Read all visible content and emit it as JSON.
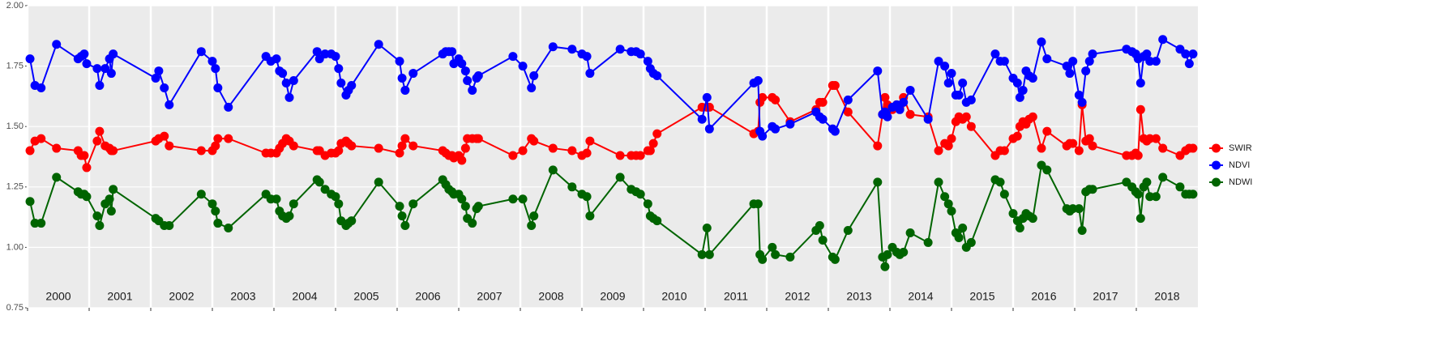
{
  "chart_data": {
    "type": "line",
    "x": [
      2000.04,
      2000.12,
      2000.22,
      2000.47,
      2000.82,
      2000.87,
      2000.92,
      2000.96,
      2001.13,
      2001.17,
      2001.26,
      2001.33,
      2001.36,
      2001.39,
      2002.08,
      2002.13,
      2002.22,
      2002.3,
      2002.82,
      2003.0,
      2003.05,
      2003.09,
      2003.26,
      2003.87,
      2003.95,
      2004.04,
      2004.09,
      2004.14,
      2004.2,
      2004.25,
      2004.32,
      2004.7,
      2004.74,
      2004.83,
      2004.93,
      2005.0,
      2005.05,
      2005.09,
      2005.17,
      2005.21,
      2005.26,
      2005.7,
      2006.04,
      2006.08,
      2006.13,
      2006.26,
      2006.74,
      2006.79,
      2006.84,
      2006.89,
      2006.92,
      2007.0,
      2007.05,
      2007.11,
      2007.14,
      2007.22,
      2007.29,
      2007.32,
      2007.88,
      2008.04,
      2008.18,
      2008.22,
      2008.53,
      2008.84,
      2009.0,
      2009.08,
      2009.13,
      2009.62,
      2009.8,
      2009.88,
      2009.95,
      2010.07,
      2010.11,
      2010.16,
      2010.22,
      2010.95,
      2011.03,
      2011.07,
      2011.79,
      2011.86,
      2011.89,
      2011.93,
      2012.09,
      2012.14,
      2012.38,
      2012.8,
      2012.86,
      2012.91,
      2013.07,
      2013.11,
      2013.32,
      2013.8,
      2013.88,
      2013.92,
      2013.96,
      2014.04,
      2014.11,
      2014.16,
      2014.22,
      2014.33,
      2014.62,
      2014.79,
      2014.89,
      2014.95,
      2015.0,
      2015.07,
      2015.12,
      2015.18,
      2015.24,
      2015.32,
      2015.71,
      2015.79,
      2015.86,
      2016.0,
      2016.07,
      2016.11,
      2016.16,
      2016.21,
      2016.26,
      2016.32,
      2016.46,
      2016.55,
      2016.87,
      2016.92,
      2016.97,
      2017.07,
      2017.12,
      2017.18,
      2017.24,
      2017.29,
      2017.84,
      2017.93,
      2017.99,
      2018.03,
      2018.07,
      2018.12,
      2018.17,
      2018.22,
      2018.32,
      2018.43,
      2018.71,
      2018.8,
      2018.86,
      2018.92
    ],
    "series": [
      {
        "name": "SWIR",
        "color": "#ff0000",
        "values": [
          1.4,
          1.44,
          1.45,
          1.41,
          1.4,
          1.38,
          1.38,
          1.33,
          1.44,
          1.48,
          1.42,
          1.41,
          1.4,
          1.4,
          1.44,
          1.45,
          1.46,
          1.42,
          1.4,
          1.4,
          1.42,
          1.45,
          1.45,
          1.39,
          1.39,
          1.39,
          1.41,
          1.43,
          1.45,
          1.44,
          1.42,
          1.4,
          1.4,
          1.38,
          1.39,
          1.39,
          1.4,
          1.43,
          1.44,
          1.43,
          1.42,
          1.41,
          1.39,
          1.42,
          1.45,
          1.42,
          1.4,
          1.39,
          1.38,
          1.38,
          1.37,
          1.38,
          1.36,
          1.41,
          1.45,
          1.45,
          1.45,
          1.45,
          1.38,
          1.4,
          1.45,
          1.44,
          1.41,
          1.4,
          1.38,
          1.39,
          1.44,
          1.38,
          1.38,
          1.38,
          1.38,
          1.4,
          1.4,
          1.43,
          1.47,
          1.58,
          1.58,
          1.58,
          1.47,
          1.48,
          1.6,
          1.62,
          1.62,
          1.61,
          1.52,
          1.57,
          1.6,
          1.6,
          1.67,
          1.67,
          1.56,
          1.42,
          1.55,
          1.62,
          1.59,
          1.57,
          1.59,
          1.58,
          1.62,
          1.55,
          1.54,
          1.4,
          1.43,
          1.42,
          1.45,
          1.52,
          1.54,
          1.53,
          1.54,
          1.5,
          1.38,
          1.4,
          1.4,
          1.45,
          1.46,
          1.5,
          1.52,
          1.51,
          1.53,
          1.54,
          1.41,
          1.48,
          1.42,
          1.43,
          1.43,
          1.4,
          1.59,
          1.44,
          1.45,
          1.42,
          1.38,
          1.38,
          1.39,
          1.38,
          1.57,
          1.45,
          1.44,
          1.45,
          1.45,
          1.41,
          1.38,
          1.4,
          1.41,
          1.41
        ]
      },
      {
        "name": "NDVI",
        "color": "#0000ff",
        "values": [
          1.78,
          1.67,
          1.66,
          1.84,
          1.78,
          1.79,
          1.8,
          1.76,
          1.74,
          1.67,
          1.74,
          1.78,
          1.72,
          1.8,
          1.7,
          1.73,
          1.66,
          1.59,
          1.81,
          1.77,
          1.74,
          1.66,
          1.58,
          1.79,
          1.77,
          1.78,
          1.73,
          1.72,
          1.68,
          1.62,
          1.69,
          1.81,
          1.78,
          1.8,
          1.8,
          1.79,
          1.74,
          1.68,
          1.63,
          1.65,
          1.67,
          1.84,
          1.77,
          1.7,
          1.65,
          1.72,
          1.8,
          1.81,
          1.81,
          1.81,
          1.76,
          1.78,
          1.76,
          1.73,
          1.69,
          1.65,
          1.7,
          1.71,
          1.79,
          1.75,
          1.66,
          1.71,
          1.83,
          1.82,
          1.8,
          1.79,
          1.72,
          1.82,
          1.81,
          1.81,
          1.8,
          1.77,
          1.74,
          1.72,
          1.71,
          1.53,
          1.62,
          1.49,
          1.68,
          1.69,
          1.48,
          1.46,
          1.5,
          1.49,
          1.51,
          1.56,
          1.54,
          1.53,
          1.49,
          1.48,
          1.61,
          1.73,
          1.55,
          1.56,
          1.54,
          1.58,
          1.59,
          1.57,
          1.6,
          1.65,
          1.53,
          1.77,
          1.75,
          1.68,
          1.72,
          1.63,
          1.63,
          1.68,
          1.6,
          1.61,
          1.8,
          1.77,
          1.77,
          1.7,
          1.68,
          1.62,
          1.65,
          1.73,
          1.71,
          1.7,
          1.85,
          1.78,
          1.75,
          1.72,
          1.77,
          1.63,
          1.6,
          1.73,
          1.77,
          1.8,
          1.82,
          1.81,
          1.8,
          1.78,
          1.68,
          1.79,
          1.8,
          1.77,
          1.77,
          1.86,
          1.82,
          1.8,
          1.76,
          1.8
        ]
      },
      {
        "name": "NDWI",
        "color": "#006400",
        "values": [
          1.19,
          1.1,
          1.1,
          1.29,
          1.23,
          1.22,
          1.22,
          1.21,
          1.13,
          1.09,
          1.18,
          1.2,
          1.15,
          1.24,
          1.12,
          1.11,
          1.09,
          1.09,
          1.22,
          1.18,
          1.15,
          1.1,
          1.08,
          1.22,
          1.2,
          1.2,
          1.15,
          1.13,
          1.12,
          1.13,
          1.18,
          1.28,
          1.27,
          1.24,
          1.22,
          1.21,
          1.18,
          1.11,
          1.09,
          1.1,
          1.11,
          1.27,
          1.17,
          1.13,
          1.09,
          1.18,
          1.28,
          1.26,
          1.24,
          1.23,
          1.22,
          1.22,
          1.2,
          1.17,
          1.12,
          1.1,
          1.16,
          1.17,
          1.2,
          1.2,
          1.09,
          1.13,
          1.32,
          1.25,
          1.22,
          1.21,
          1.13,
          1.29,
          1.24,
          1.23,
          1.22,
          1.18,
          1.13,
          1.12,
          1.11,
          0.97,
          1.08,
          0.97,
          1.18,
          1.18,
          0.97,
          0.95,
          1.0,
          0.97,
          0.96,
          1.07,
          1.09,
          1.03,
          0.96,
          0.95,
          1.07,
          1.27,
          0.96,
          0.92,
          0.97,
          1.0,
          0.98,
          0.97,
          0.98,
          1.06,
          1.02,
          1.27,
          1.21,
          1.18,
          1.15,
          1.06,
          1.04,
          1.08,
          1.0,
          1.02,
          1.28,
          1.27,
          1.22,
          1.14,
          1.11,
          1.08,
          1.12,
          1.14,
          1.13,
          1.12,
          1.34,
          1.32,
          1.16,
          1.15,
          1.16,
          1.16,
          1.07,
          1.23,
          1.24,
          1.24,
          1.27,
          1.25,
          1.23,
          1.22,
          1.12,
          1.25,
          1.27,
          1.21,
          1.21,
          1.29,
          1.25,
          1.22,
          1.22,
          1.22
        ]
      }
    ],
    "xlim": [
      2000,
      2019
    ],
    "xticks": [
      {
        "value": 2000,
        "label": "2000"
      },
      {
        "value": 2001,
        "label": "2001"
      },
      {
        "value": 2002,
        "label": "2002"
      },
      {
        "value": 2003,
        "label": "2003"
      },
      {
        "value": 2004,
        "label": "2004"
      },
      {
        "value": 2005,
        "label": "2005"
      },
      {
        "value": 2006,
        "label": "2006"
      },
      {
        "value": 2007,
        "label": "2007"
      },
      {
        "value": 2008,
        "label": "2008"
      },
      {
        "value": 2009,
        "label": "2009"
      },
      {
        "value": 2010,
        "label": "2010"
      },
      {
        "value": 2011,
        "label": "2011"
      },
      {
        "value": 2012,
        "label": "2012"
      },
      {
        "value": 2013,
        "label": "2013"
      },
      {
        "value": 2014,
        "label": "2014"
      },
      {
        "value": 2015,
        "label": "2015"
      },
      {
        "value": 2016,
        "label": "2016"
      },
      {
        "value": 2017,
        "label": "2017"
      },
      {
        "value": 2018,
        "label": "2018"
      }
    ],
    "ylim": [
      0.75,
      2.0
    ],
    "yticks": [
      {
        "value": 0.75,
        "label": "0.75"
      },
      {
        "value": 1.0,
        "label": "1.00"
      },
      {
        "value": 1.25,
        "label": "1.25"
      },
      {
        "value": 1.5,
        "label": "1.50"
      },
      {
        "value": 1.75,
        "label": "1.75"
      },
      {
        "value": 2.0,
        "label": "2.00"
      }
    ],
    "grid": true,
    "legend": "right"
  }
}
